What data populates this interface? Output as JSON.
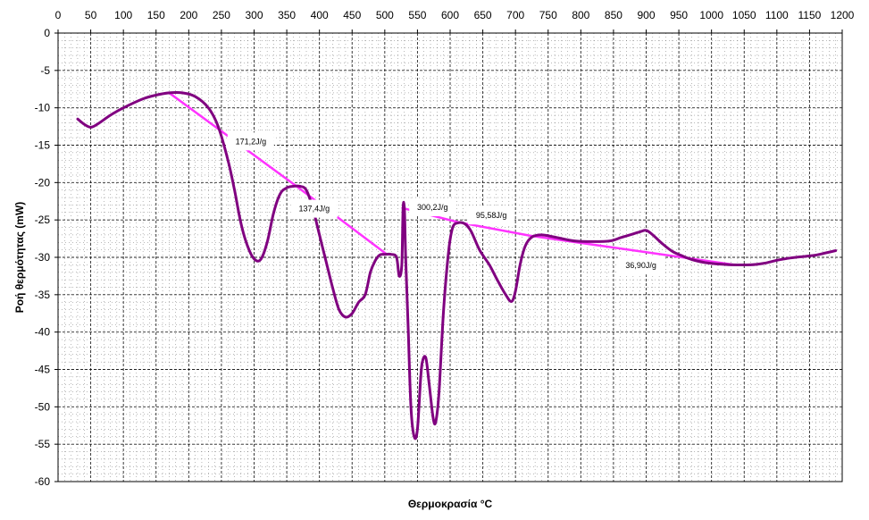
{
  "chart_data": {
    "type": "line",
    "xlabel": "Θερμοκρασία °C",
    "ylabel": "Ροή θερμότητας (mW)",
    "xlim": [
      0,
      1200
    ],
    "ylim": [
      -60,
      0
    ],
    "x_ticks": [
      0,
      50,
      100,
      150,
      200,
      250,
      300,
      350,
      400,
      450,
      500,
      550,
      600,
      650,
      700,
      750,
      800,
      850,
      900,
      950,
      1000,
      1050,
      1100,
      1150,
      1200
    ],
    "y_ticks": [
      0,
      -5,
      -10,
      -15,
      -20,
      -25,
      -30,
      -35,
      -40,
      -45,
      -50,
      -55,
      -60
    ],
    "x_axis_position": "top",
    "grid": "dashed",
    "legend": "none",
    "colors": {
      "curve": "#800080",
      "baseline": "#ff33ff",
      "grid": "#000000"
    },
    "series": [
      {
        "values": [
          [
            30,
            -11.5
          ],
          [
            40,
            -12.2
          ],
          [
            50,
            -12.6
          ],
          [
            60,
            -12.2
          ],
          [
            80,
            -11.0
          ],
          [
            100,
            -10.0
          ],
          [
            130,
            -8.8
          ],
          [
            150,
            -8.3
          ],
          [
            170,
            -8.0
          ],
          [
            190,
            -8.0
          ],
          [
            210,
            -8.5
          ],
          [
            230,
            -10.0
          ],
          [
            245,
            -12.5
          ],
          [
            260,
            -17.0
          ],
          [
            270,
            -21.0
          ],
          [
            280,
            -25.5
          ],
          [
            290,
            -28.5
          ],
          [
            300,
            -30.2
          ],
          [
            310,
            -30.3
          ],
          [
            320,
            -28.0
          ],
          [
            330,
            -24.0
          ],
          [
            340,
            -21.5
          ],
          [
            350,
            -20.7
          ],
          [
            360,
            -20.5
          ],
          [
            370,
            -20.5
          ],
          [
            380,
            -21.0
          ],
          [
            390,
            -23.5
          ],
          [
            400,
            -27.0
          ],
          [
            410,
            -30.5
          ],
          [
            420,
            -34.0
          ],
          [
            430,
            -37.0
          ],
          [
            440,
            -38.0
          ],
          [
            450,
            -37.5
          ],
          [
            460,
            -36.0
          ],
          [
            470,
            -35.0
          ],
          [
            478,
            -32.0
          ],
          [
            485,
            -30.5
          ],
          [
            492,
            -29.7
          ],
          [
            500,
            -29.6
          ],
          [
            510,
            -29.6
          ],
          [
            518,
            -30.0
          ],
          [
            522,
            -32.5
          ],
          [
            526,
            -31.0
          ],
          [
            528,
            -23.5
          ],
          [
            530,
            -23.5
          ],
          [
            532,
            -30.0
          ],
          [
            536,
            -40.0
          ],
          [
            540,
            -50.0
          ],
          [
            545,
            -54.0
          ],
          [
            550,
            -53.0
          ],
          [
            555,
            -46.0
          ],
          [
            558,
            -43.8
          ],
          [
            563,
            -43.5
          ],
          [
            568,
            -47.0
          ],
          [
            574,
            -51.5
          ],
          [
            578,
            -52.0
          ],
          [
            583,
            -48.0
          ],
          [
            590,
            -37.0
          ],
          [
            598,
            -29.0
          ],
          [
            604,
            -26.0
          ],
          [
            612,
            -25.4
          ],
          [
            622,
            -25.5
          ],
          [
            632,
            -26.5
          ],
          [
            645,
            -29.0
          ],
          [
            660,
            -31.0
          ],
          [
            672,
            -33.0
          ],
          [
            685,
            -35.0
          ],
          [
            694,
            -35.9
          ],
          [
            700,
            -34.5
          ],
          [
            707,
            -31.0
          ],
          [
            715,
            -28.5
          ],
          [
            725,
            -27.3
          ],
          [
            740,
            -27.0
          ],
          [
            760,
            -27.3
          ],
          [
            790,
            -27.8
          ],
          [
            820,
            -27.9
          ],
          [
            845,
            -27.8
          ],
          [
            860,
            -27.4
          ],
          [
            875,
            -27.0
          ],
          [
            890,
            -26.6
          ],
          [
            900,
            -26.4
          ],
          [
            910,
            -27.0
          ],
          [
            925,
            -28.2
          ],
          [
            940,
            -29.2
          ],
          [
            955,
            -29.8
          ],
          [
            970,
            -30.3
          ],
          [
            990,
            -30.7
          ],
          [
            1010,
            -30.9
          ],
          [
            1030,
            -31.0
          ],
          [
            1060,
            -31.0
          ],
          [
            1080,
            -30.8
          ],
          [
            1100,
            -30.4
          ],
          [
            1120,
            -30.1
          ],
          [
            1140,
            -29.9
          ],
          [
            1160,
            -29.7
          ],
          [
            1175,
            -29.4
          ],
          [
            1190,
            -29.1
          ]
        ]
      },
      {
        "segments": [
          [
            [
              170,
              -8.0
            ],
            [
              365,
              -20.5
            ]
          ],
          [
            [
              365,
              -20.5
            ],
            [
              503,
              -29.6
            ]
          ],
          [
            [
              527,
              -23.4
            ],
            [
              612,
              -25.3
            ]
          ],
          [
            [
              612,
              -25.3
            ],
            [
              722,
              -27.1
            ]
          ],
          [
            [
              722,
              -27.1
            ],
            [
              1035,
              -31.0
            ]
          ]
        ]
      }
    ],
    "annotations": [
      {
        "text": "171,2J/g",
        "x": 295,
        "y": -14.5
      },
      {
        "text": "137,4J/g",
        "x": 392,
        "y": -23.5
      },
      {
        "text": "300,2J/g",
        "x": 573,
        "y": -23.3
      },
      {
        "text": "95,58J/g",
        "x": 663,
        "y": -24.4
      },
      {
        "text": "36,90J/g",
        "x": 892,
        "y": -31.1
      }
    ]
  }
}
